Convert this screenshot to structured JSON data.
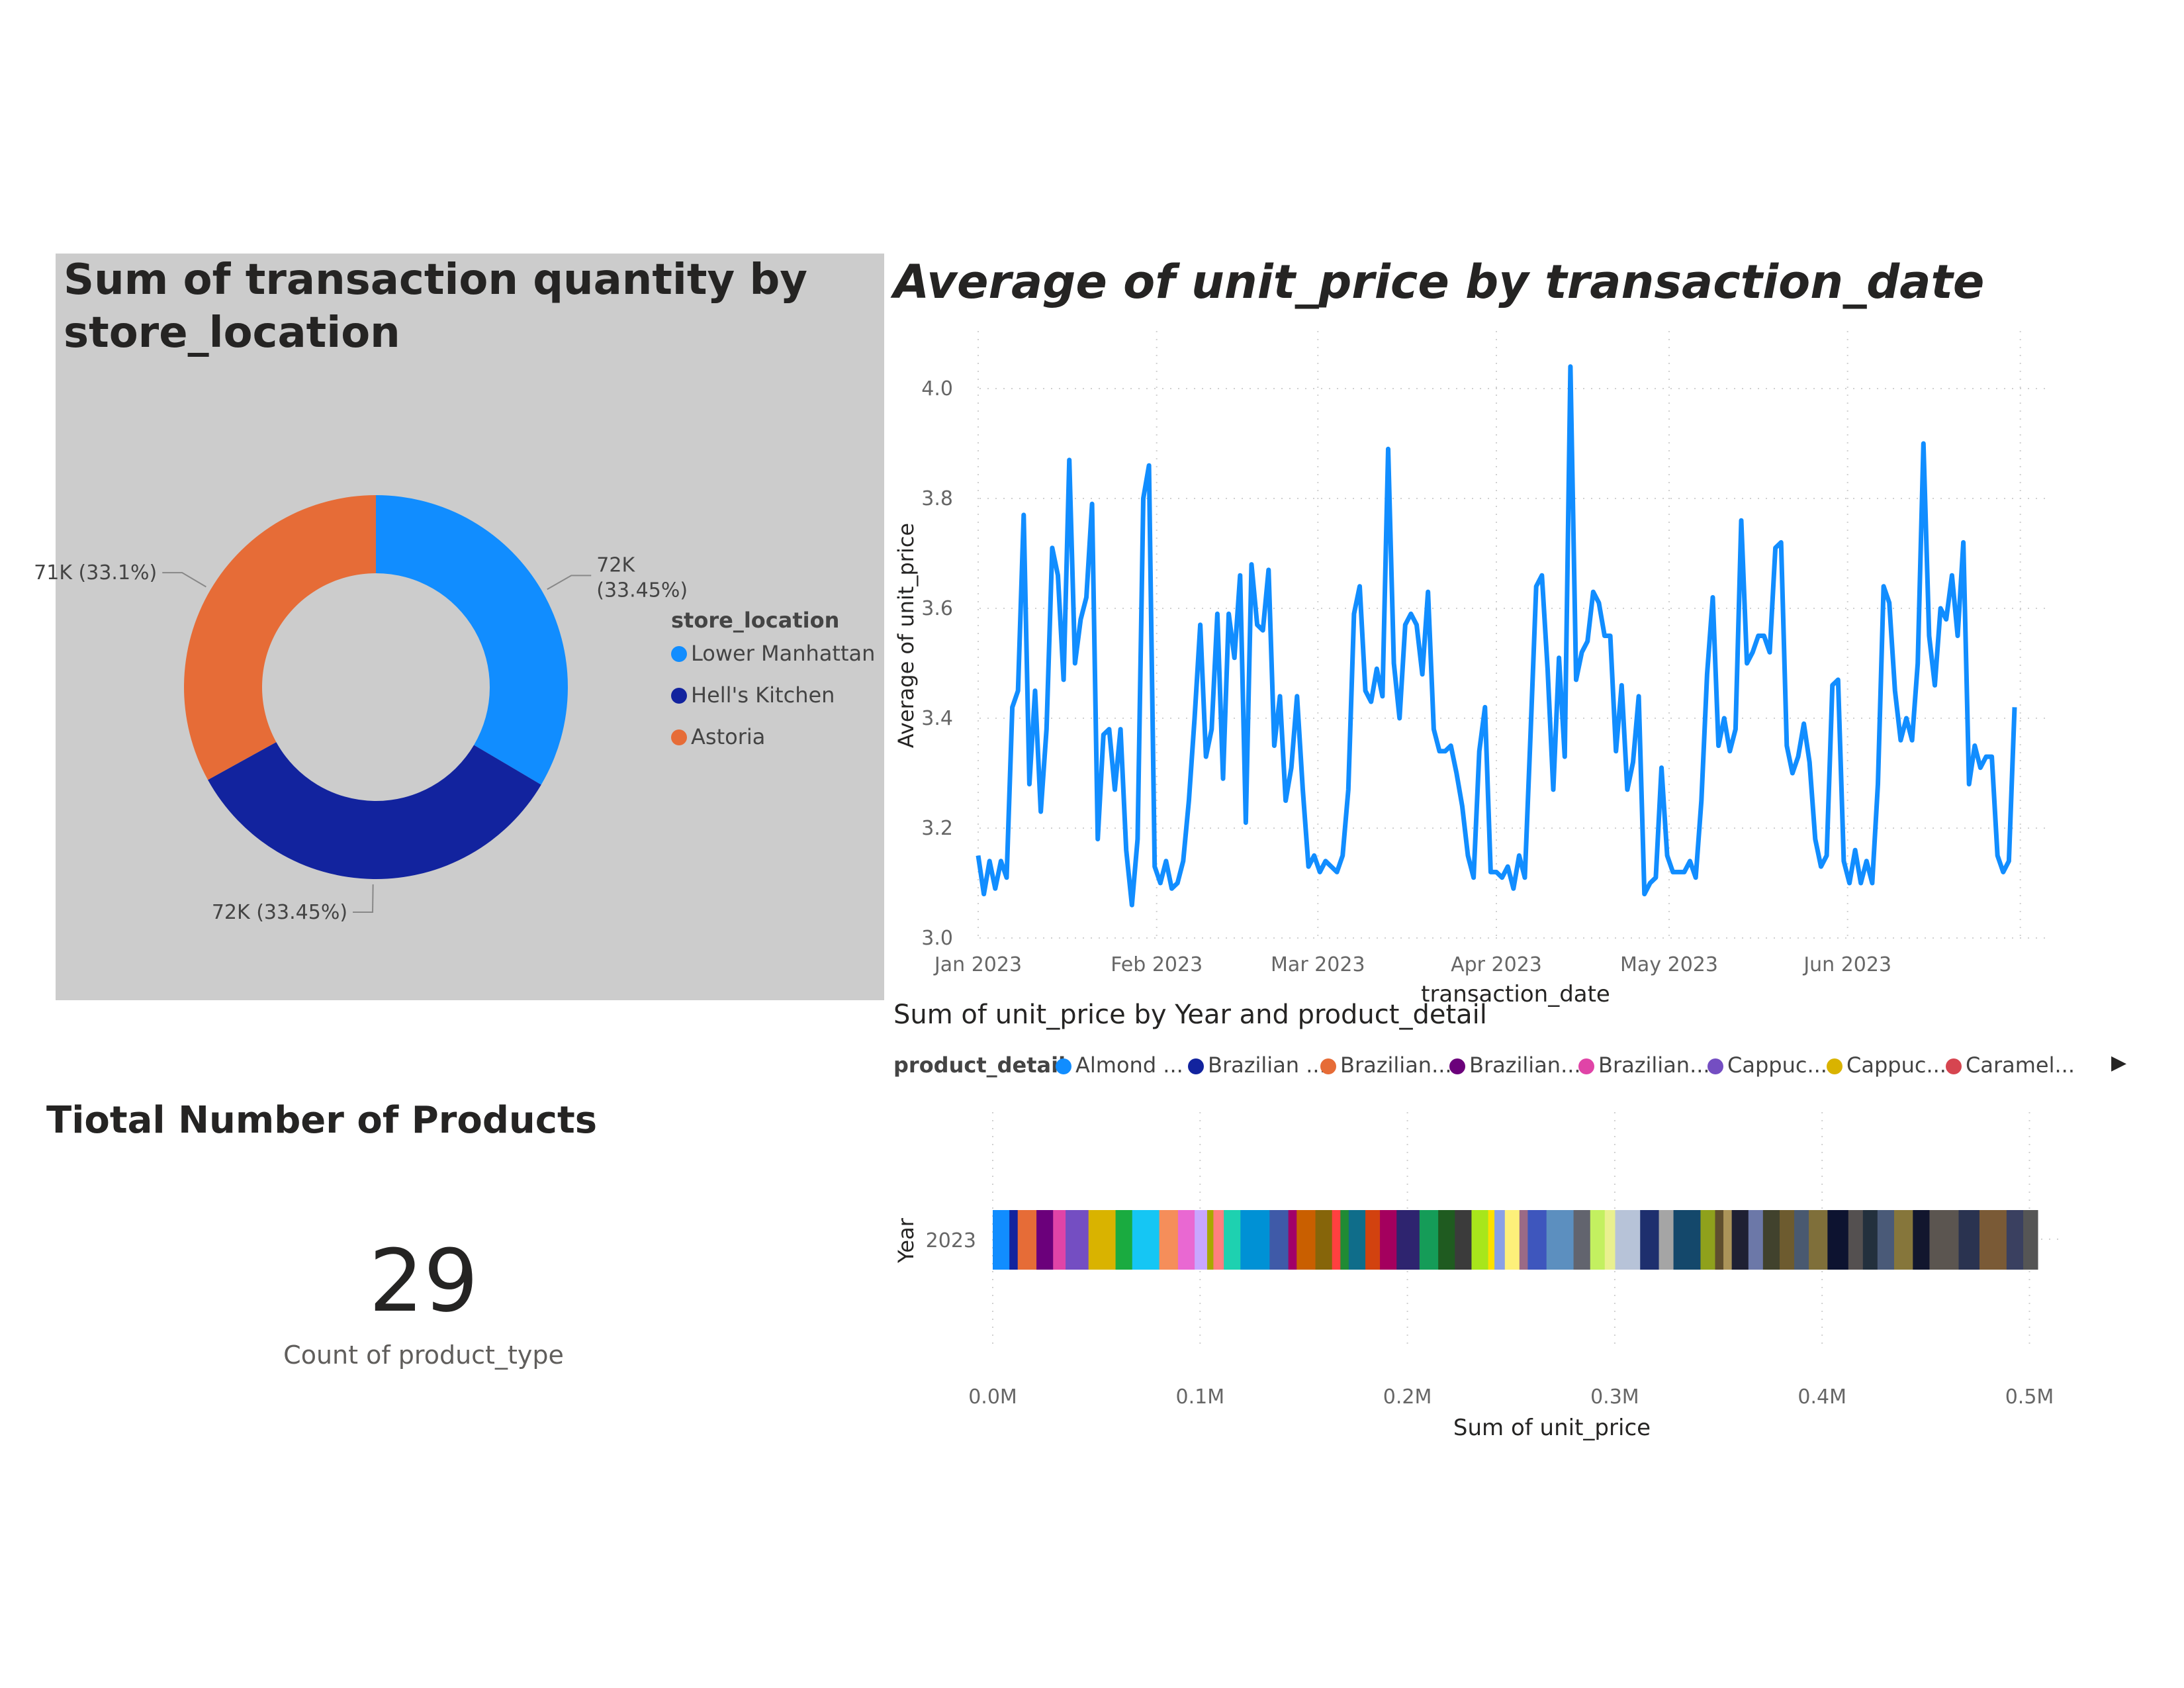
{
  "donut": {
    "title": "Sum of transaction quantity by store_location",
    "legend_title": "store_location",
    "chart_data": {
      "type": "pie",
      "variant": "donut",
      "title": "Sum of transaction quantity by store_location",
      "legend_title": "store_location",
      "categories": [
        "Lower Manhattan",
        "Hell's Kitchen",
        "Astoria"
      ],
      "values": [
        72000,
        72000,
        71000
      ],
      "percents": [
        33.45,
        33.45,
        33.1
      ],
      "data_labels": [
        "72K (33.45%)",
        "72K (33.45%)",
        "71K (33.1%)"
      ],
      "colors": [
        "#118dff",
        "#12239e",
        "#e66c37"
      ]
    }
  },
  "line": {
    "title": "Average of unit_price by transaction_date",
    "chart_data": {
      "type": "line",
      "title": "Average of unit_price by transaction_date",
      "xlabel": "transaction_date",
      "ylabel": "Average of unit_price",
      "ylim": [
        3.0,
        4.0
      ],
      "yticks": [
        "3.0",
        "3.2",
        "3.4",
        "3.6",
        "3.8",
        "4.0"
      ],
      "xticks": [
        "Jan 2023",
        "Feb 2023",
        "Mar 2023",
        "Apr 2023",
        "May 2023",
        "Jun 2023"
      ],
      "xrange": [
        "2023-01-01",
        "2023-06-30"
      ],
      "color": "#118dff",
      "grid": true,
      "series": [
        {
          "values": [
            3.15,
            3.08,
            3.14,
            3.09,
            3.14,
            3.11,
            3.42,
            3.45,
            3.77,
            3.28,
            3.45,
            3.23,
            3.38,
            3.71,
            3.66,
            3.47,
            3.87,
            3.5,
            3.58,
            3.62,
            3.79,
            3.18,
            3.37,
            3.38,
            3.27,
            3.38,
            3.16,
            3.06,
            3.18,
            3.8,
            3.86,
            3.13,
            3.1,
            3.14,
            3.09,
            3.1,
            3.14,
            3.25,
            3.4,
            3.57,
            3.33,
            3.38,
            3.59,
            3.29,
            3.59,
            3.51,
            3.66,
            3.21,
            3.68,
            3.57,
            3.56,
            3.67,
            3.35,
            3.44,
            3.25,
            3.31,
            3.44,
            3.27,
            3.13,
            3.15,
            3.12,
            3.14,
            3.13,
            3.12,
            3.15,
            3.27,
            3.59,
            3.64,
            3.45,
            3.43,
            3.49,
            3.44,
            3.89,
            3.5,
            3.4,
            3.57,
            3.59,
            3.57,
            3.48,
            3.63,
            3.38,
            3.34,
            3.34,
            3.35,
            3.3,
            3.24,
            3.15,
            3.11,
            3.34,
            3.42,
            3.12,
            3.12,
            3.11,
            3.13,
            3.09,
            3.15,
            3.11,
            3.37,
            3.64,
            3.66,
            3.49,
            3.27,
            3.51,
            3.33,
            4.04,
            3.47,
            3.52,
            3.54,
            3.63,
            3.61,
            3.55,
            3.55,
            3.34,
            3.46,
            3.27,
            3.32,
            3.44,
            3.08,
            3.1,
            3.11,
            3.31,
            3.15,
            3.12,
            3.12,
            3.12,
            3.14,
            3.11,
            3.25,
            3.48,
            3.62,
            3.35,
            3.4,
            3.34,
            3.38,
            3.76,
            3.5,
            3.52,
            3.55,
            3.55,
            3.52,
            3.71,
            3.72,
            3.35,
            3.3,
            3.33,
            3.39,
            3.32,
            3.18,
            3.13,
            3.15,
            3.46,
            3.47,
            3.14,
            3.1,
            3.16,
            3.1,
            3.14,
            3.1,
            3.28,
            3.64,
            3.61,
            3.45,
            3.36,
            3.4,
            3.36,
            3.5,
            3.9,
            3.55,
            3.46,
            3.6,
            3.58,
            3.66,
            3.55,
            3.72,
            3.28,
            3.35,
            3.31,
            3.33,
            3.33,
            3.15,
            3.12,
            3.14,
            3.42
          ]
        }
      ]
    }
  },
  "bar": {
    "title": "Sum of unit_price by Year and product_detail",
    "legend_title": "product_detail",
    "legend_items": [
      "Almond ...",
      "Brazilian ...",
      "Brazilian...",
      "Brazilian...",
      "Brazilian...",
      "Cappuc...",
      "Cappuc...",
      "Caramel..."
    ],
    "legend_colors": [
      "#118dff",
      "#12239e",
      "#e66c37",
      "#6b007b",
      "#e044a7",
      "#744ec2",
      "#d9b300",
      "#d64550"
    ],
    "legend_more_icon": "caret-right-icon",
    "chart_data": {
      "type": "bar",
      "orientation": "horizontal",
      "stacked": true,
      "title": "Sum of unit_price by Year and product_detail",
      "xlabel": "Sum of unit_price",
      "ylabel": "Year",
      "categories": [
        "2023"
      ],
      "xlim": [
        0,
        0.5
      ],
      "xunit": "M",
      "xticks": [
        "0.0M",
        "0.1M",
        "0.2M",
        "0.3M",
        "0.4M",
        "0.5M"
      ],
      "total": 0.504,
      "segment_values": [
        0.008,
        0.004,
        0.009,
        0.008,
        0.006,
        0.011,
        0.013,
        0.008,
        0.013,
        0.009,
        0.008,
        0.006,
        0.003,
        0.005,
        0.008,
        0.014,
        0.009,
        0.004,
        0.009,
        0.008,
        0.004,
        0.004,
        0.008,
        0.007,
        0.008,
        0.011,
        0.009,
        0.008,
        0.008,
        0.008,
        0.003,
        0.005,
        0.007,
        0.004,
        0.009,
        0.013,
        0.008,
        0.007,
        0.005,
        0.012,
        0.009,
        0.007,
        0.013,
        0.007,
        0.004,
        0.004,
        0.008,
        0.007,
        0.008,
        0.007,
        0.007,
        0.009,
        0.01,
        0.007,
        0.007,
        0.008,
        0.009,
        0.008,
        0.014,
        0.01,
        0.013,
        0.008,
        0.007
      ],
      "segment_colors": [
        "#118dff",
        "#12239e",
        "#e66c37",
        "#6b007b",
        "#e044a7",
        "#744ec2",
        "#d9b300",
        "#1aab40",
        "#15c6f4",
        "#f58e5a",
        "#e968d2",
        "#c8a6ff",
        "#a8a800",
        "#ff7f7f",
        "#1ed1b0",
        "#0091d5",
        "#3f5aa8",
        "#a10068",
        "#c95f00",
        "#86650a",
        "#ff4040",
        "#208b34",
        "#0f6d8a",
        "#d2420f",
        "#a4005e",
        "#2e246f",
        "#159c58",
        "#1f5b20",
        "#3b3b3b",
        "#a8e61b",
        "#ffe000",
        "#8aa0e6",
        "#fdf07a",
        "#9b6a86",
        "#3e56bd",
        "#5c8fbf",
        "#62646e",
        "#c3f060",
        "#e9f08f",
        "#b7c3d8",
        "#1e2f6e",
        "#a5a5a5",
        "#14486b",
        "#8fa11c",
        "#5f4f2e",
        "#ab9459",
        "#1f2033",
        "#6c78a8",
        "#41422d",
        "#6d5b2f",
        "#495970",
        "#7f6f3a",
        "#0d1330",
        "#545050",
        "#23303d",
        "#4a5a78",
        "#86763b",
        "#12162e",
        "#5b5550",
        "#2a3350",
        "#7a5a36",
        "#3a4060",
        "#555555"
      ]
    }
  },
  "kpi": {
    "title": "Tiotal Number of Products",
    "value": "29",
    "label": "Count of product_type"
  }
}
